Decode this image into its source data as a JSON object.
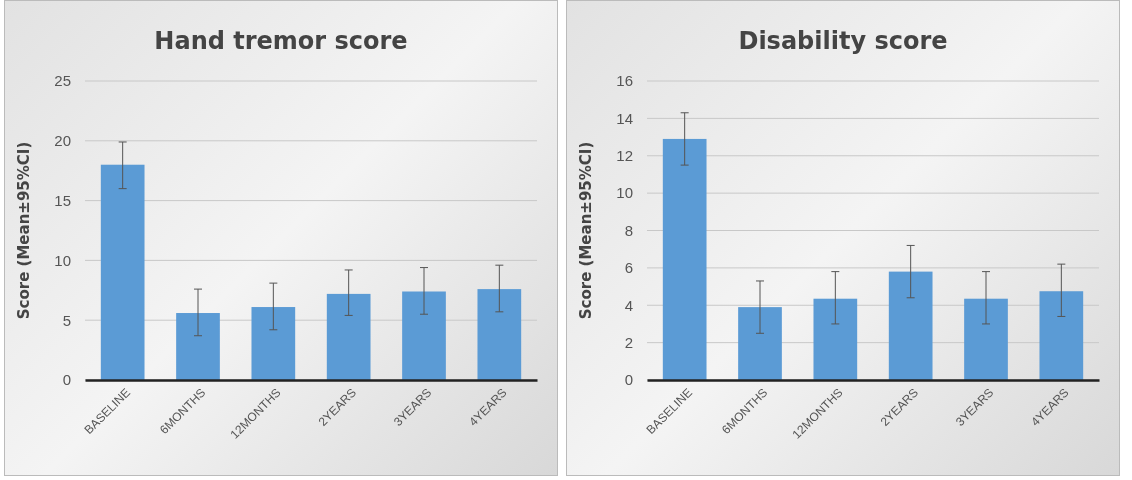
{
  "chart_data": [
    {
      "type": "bar",
      "title": "Hand tremor score",
      "ylabel": "Score (Mean±95%CI)",
      "categories": [
        "BASELINE",
        "6MONTHS",
        "12MONTHS",
        "2YEARS",
        "3YEARS",
        "4YEARS"
      ],
      "color": "#5b9bd5",
      "values": [
        18.0,
        5.6,
        6.1,
        7.2,
        7.4,
        7.6
      ],
      "errors": [
        [
          16.0,
          19.9
        ],
        [
          3.7,
          7.6
        ],
        [
          4.2,
          8.1
        ],
        [
          5.4,
          9.2
        ],
        [
          5.5,
          9.4
        ],
        [
          5.7,
          9.6
        ]
      ],
      "ylim": [
        0,
        25
      ],
      "yticks": [
        0,
        5,
        10,
        15,
        20,
        25
      ],
      "grid": "y"
    },
    {
      "type": "bar",
      "title": "Disability score",
      "ylabel": "Score (Mean±95%CI)",
      "categories": [
        "BASELINE",
        "6MONTHS",
        "12MONTHS",
        "2YEARS",
        "3YEARS",
        "4YEARS"
      ],
      "color": "#5b9bd5",
      "values": [
        12.9,
        3.9,
        4.35,
        5.8,
        4.35,
        4.75
      ],
      "errors": [
        [
          11.5,
          14.3
        ],
        [
          2.5,
          5.3
        ],
        [
          3.0,
          5.8
        ],
        [
          4.4,
          7.2
        ],
        [
          3.0,
          5.8
        ],
        [
          3.4,
          6.2
        ]
      ],
      "ylim": [
        0,
        16
      ],
      "yticks": [
        0,
        2,
        4,
        6,
        8,
        10,
        12,
        14,
        16
      ],
      "grid": "y"
    }
  ]
}
